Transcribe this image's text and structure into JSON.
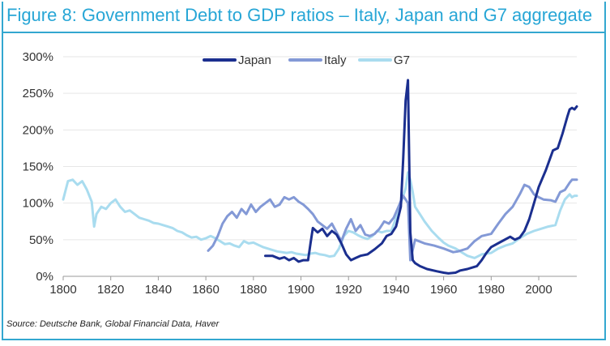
{
  "title": "Figure 8: Government Debt to GDP ratios – Italy, Japan and G7 aggregate",
  "source": "Source: Deutsche Bank, Global Financial Data, Haver",
  "colors": {
    "frame": "#33a7d0",
    "title": "#27a6d6",
    "japan": "#1b2f8f",
    "italy": "#8399d6",
    "g7": "#a9dcef"
  },
  "chart_data": {
    "type": "line",
    "xlim": [
      1800,
      2016
    ],
    "ylim": [
      0,
      300
    ],
    "x_ticks": [
      1800,
      1820,
      1840,
      1860,
      1880,
      1900,
      1920,
      1940,
      1960,
      1980,
      2000
    ],
    "x_tick_labels": [
      "1800",
      "1820",
      "1840",
      "1860",
      "1880",
      "1900",
      "1920",
      "1940",
      "1960",
      "1980",
      "2000"
    ],
    "y_ticks": [
      0,
      50,
      100,
      150,
      200,
      250,
      300
    ],
    "y_tick_labels": [
      "0%",
      "50%",
      "100%",
      "150%",
      "200%",
      "250%",
      "300%"
    ],
    "legend_position": "top-center",
    "series": [
      {
        "name": "Japan",
        "color": "#1b2f8f",
        "points": [
          [
            1885,
            28
          ],
          [
            1888,
            28
          ],
          [
            1891,
            24
          ],
          [
            1893,
            26
          ],
          [
            1895,
            22
          ],
          [
            1897,
            25
          ],
          [
            1899,
            20
          ],
          [
            1901,
            22
          ],
          [
            1903,
            22
          ],
          [
            1904,
            45
          ],
          [
            1905,
            66
          ],
          [
            1907,
            60
          ],
          [
            1909,
            65
          ],
          [
            1911,
            55
          ],
          [
            1913,
            62
          ],
          [
            1915,
            57
          ],
          [
            1917,
            45
          ],
          [
            1919,
            30
          ],
          [
            1921,
            22
          ],
          [
            1923,
            25
          ],
          [
            1925,
            28
          ],
          [
            1928,
            30
          ],
          [
            1931,
            37
          ],
          [
            1934,
            45
          ],
          [
            1936,
            55
          ],
          [
            1938,
            58
          ],
          [
            1940,
            68
          ],
          [
            1942,
            95
          ],
          [
            1943,
            160
          ],
          [
            1944,
            240
          ],
          [
            1945,
            268
          ],
          [
            1946,
            60
          ],
          [
            1947,
            22
          ],
          [
            1948,
            18
          ],
          [
            1950,
            14
          ],
          [
            1953,
            10
          ],
          [
            1957,
            7
          ],
          [
            1960,
            5
          ],
          [
            1962,
            4
          ],
          [
            1965,
            5
          ],
          [
            1967,
            8
          ],
          [
            1970,
            10
          ],
          [
            1972,
            12
          ],
          [
            1974,
            14
          ],
          [
            1976,
            22
          ],
          [
            1978,
            32
          ],
          [
            1980,
            40
          ],
          [
            1984,
            47
          ],
          [
            1988,
            54
          ],
          [
            1990,
            50
          ],
          [
            1992,
            53
          ],
          [
            1994,
            62
          ],
          [
            1996,
            78
          ],
          [
            1998,
            100
          ],
          [
            2000,
            122
          ],
          [
            2003,
            145
          ],
          [
            2006,
            172
          ],
          [
            2008,
            175
          ],
          [
            2010,
            195
          ],
          [
            2012,
            218
          ],
          [
            2013,
            228
          ],
          [
            2014,
            230
          ],
          [
            2015,
            228
          ],
          [
            2016,
            232
          ]
        ]
      },
      {
        "name": "Italy",
        "color": "#8399d6",
        "points": [
          [
            1861,
            35
          ],
          [
            1863,
            42
          ],
          [
            1865,
            55
          ],
          [
            1867,
            72
          ],
          [
            1869,
            82
          ],
          [
            1871,
            88
          ],
          [
            1873,
            80
          ],
          [
            1875,
            92
          ],
          [
            1877,
            85
          ],
          [
            1879,
            98
          ],
          [
            1881,
            88
          ],
          [
            1883,
            95
          ],
          [
            1885,
            100
          ],
          [
            1887,
            105
          ],
          [
            1889,
            95
          ],
          [
            1891,
            98
          ],
          [
            1893,
            108
          ],
          [
            1895,
            105
          ],
          [
            1897,
            108
          ],
          [
            1899,
            102
          ],
          [
            1901,
            98
          ],
          [
            1903,
            92
          ],
          [
            1905,
            85
          ],
          [
            1907,
            75
          ],
          [
            1909,
            70
          ],
          [
            1911,
            65
          ],
          [
            1913,
            72
          ],
          [
            1915,
            60
          ],
          [
            1917,
            48
          ],
          [
            1919,
            65
          ],
          [
            1921,
            78
          ],
          [
            1923,
            62
          ],
          [
            1925,
            70
          ],
          [
            1927,
            57
          ],
          [
            1929,
            55
          ],
          [
            1931,
            58
          ],
          [
            1933,
            65
          ],
          [
            1935,
            75
          ],
          [
            1937,
            72
          ],
          [
            1939,
            80
          ],
          [
            1941,
            95
          ],
          [
            1943,
            110
          ],
          [
            1945,
            100
          ],
          [
            1946,
            22
          ],
          [
            1948,
            50
          ],
          [
            1952,
            45
          ],
          [
            1956,
            42
          ],
          [
            1960,
            38
          ],
          [
            1964,
            33
          ],
          [
            1966,
            34
          ],
          [
            1968,
            36
          ],
          [
            1970,
            38
          ],
          [
            1973,
            48
          ],
          [
            1976,
            55
          ],
          [
            1980,
            58
          ],
          [
            1983,
            72
          ],
          [
            1986,
            85
          ],
          [
            1989,
            95
          ],
          [
            1992,
            112
          ],
          [
            1994,
            125
          ],
          [
            1996,
            122
          ],
          [
            1998,
            112
          ],
          [
            2000,
            108
          ],
          [
            2002,
            105
          ],
          [
            2005,
            104
          ],
          [
            2007,
            102
          ],
          [
            2009,
            115
          ],
          [
            2011,
            118
          ],
          [
            2013,
            128
          ],
          [
            2014,
            132
          ],
          [
            2016,
            132
          ]
        ]
      },
      {
        "name": "G7",
        "color": "#a9dcef",
        "points": [
          [
            1800,
            105
          ],
          [
            1802,
            130
          ],
          [
            1804,
            132
          ],
          [
            1806,
            125
          ],
          [
            1808,
            130
          ],
          [
            1810,
            118
          ],
          [
            1812,
            102
          ],
          [
            1813,
            68
          ],
          [
            1814,
            85
          ],
          [
            1816,
            95
          ],
          [
            1818,
            92
          ],
          [
            1820,
            100
          ],
          [
            1822,
            105
          ],
          [
            1824,
            95
          ],
          [
            1826,
            88
          ],
          [
            1828,
            90
          ],
          [
            1830,
            85
          ],
          [
            1832,
            80
          ],
          [
            1834,
            78
          ],
          [
            1836,
            76
          ],
          [
            1838,
            73
          ],
          [
            1840,
            72
          ],
          [
            1842,
            70
          ],
          [
            1844,
            68
          ],
          [
            1846,
            66
          ],
          [
            1848,
            62
          ],
          [
            1850,
            60
          ],
          [
            1852,
            56
          ],
          [
            1854,
            53
          ],
          [
            1856,
            54
          ],
          [
            1858,
            50
          ],
          [
            1860,
            52
          ],
          [
            1862,
            55
          ],
          [
            1864,
            52
          ],
          [
            1866,
            48
          ],
          [
            1868,
            44
          ],
          [
            1870,
            45
          ],
          [
            1872,
            42
          ],
          [
            1874,
            40
          ],
          [
            1876,
            48
          ],
          [
            1878,
            45
          ],
          [
            1880,
            46
          ],
          [
            1882,
            43
          ],
          [
            1884,
            40
          ],
          [
            1886,
            38
          ],
          [
            1888,
            36
          ],
          [
            1890,
            34
          ],
          [
            1892,
            33
          ],
          [
            1894,
            32
          ],
          [
            1896,
            33
          ],
          [
            1898,
            31
          ],
          [
            1900,
            30
          ],
          [
            1902,
            29
          ],
          [
            1904,
            31
          ],
          [
            1906,
            32
          ],
          [
            1908,
            30
          ],
          [
            1910,
            29
          ],
          [
            1912,
            27
          ],
          [
            1914,
            28
          ],
          [
            1916,
            38
          ],
          [
            1918,
            55
          ],
          [
            1920,
            62
          ],
          [
            1922,
            60
          ],
          [
            1924,
            56
          ],
          [
            1926,
            53
          ],
          [
            1928,
            51
          ],
          [
            1930,
            55
          ],
          [
            1932,
            62
          ],
          [
            1934,
            60
          ],
          [
            1936,
            62
          ],
          [
            1938,
            62
          ],
          [
            1940,
            80
          ],
          [
            1942,
            100
          ],
          [
            1944,
            120
          ],
          [
            1945,
            142
          ],
          [
            1946,
            132
          ],
          [
            1947,
            115
          ],
          [
            1948,
            95
          ],
          [
            1950,
            85
          ],
          [
            1952,
            75
          ],
          [
            1955,
            62
          ],
          [
            1958,
            52
          ],
          [
            1960,
            46
          ],
          [
            1962,
            42
          ],
          [
            1965,
            38
          ],
          [
            1968,
            32
          ],
          [
            1970,
            28
          ],
          [
            1973,
            25
          ],
          [
            1976,
            30
          ],
          [
            1980,
            32
          ],
          [
            1983,
            38
          ],
          [
            1986,
            42
          ],
          [
            1989,
            45
          ],
          [
            1992,
            52
          ],
          [
            1995,
            58
          ],
          [
            1998,
            62
          ],
          [
            2001,
            65
          ],
          [
            2004,
            68
          ],
          [
            2007,
            70
          ],
          [
            2009,
            90
          ],
          [
            2011,
            105
          ],
          [
            2013,
            112
          ],
          [
            2014,
            108
          ],
          [
            2015,
            110
          ],
          [
            2016,
            110
          ]
        ]
      }
    ]
  }
}
